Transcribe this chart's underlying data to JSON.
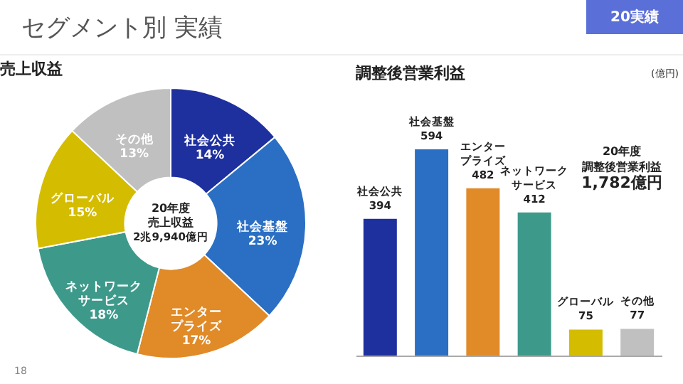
{
  "chart_data": [
    {
      "type": "donut",
      "title": "売上収益",
      "categories": [
        "社会公共",
        "社会基盤",
        "エンタープライズ",
        "ネットワークサービス",
        "グローバル",
        "その他"
      ],
      "values": [
        14,
        23,
        17,
        18,
        15,
        13
      ],
      "value_labels": [
        "14%",
        "23%",
        "17%",
        "18%",
        "15%",
        "13%"
      ],
      "colors": [
        "#1e2f9e",
        "#2a6fc4",
        "#e08a28",
        "#3d9a8b",
        "#d4bc00",
        "#c0c0c0"
      ],
      "annotations": [
        "セグメント別 実績",
        "20実績",
        "20年度",
        "売上収益",
        "2兆9,940億円",
        "18"
      ]
    },
    {
      "type": "bar",
      "title": "調整後営業利益",
      "ylabel": "(億円)",
      "categories": [
        "社会公共",
        "社会基盤",
        "エンタープライズ",
        "ネットワークサービス",
        "グローバル",
        "その他"
      ],
      "values": [
        394,
        594,
        482,
        412,
        75,
        77
      ],
      "colors": [
        "#1e2f9e",
        "#2a6fc4",
        "#e08a28",
        "#3d9a8b",
        "#d4bc00",
        "#c0c0c0"
      ],
      "data_labels": true,
      "tick_labels": false,
      "annotations": [
        "20年度",
        "調整後営業利益",
        "1,782億円"
      ]
    }
  ]
}
